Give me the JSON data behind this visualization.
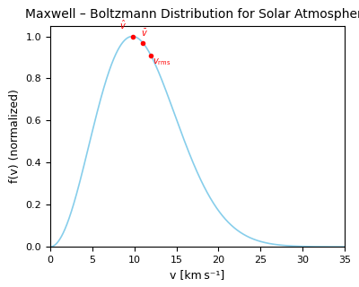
{
  "title": "Maxwell – Boltzmann Distribution for Solar Atmosphere",
  "xlabel": "v [km s⁻¹]",
  "ylabel": "f(v) (normalized)",
  "xlim": [
    0,
    35
  ],
  "ylim": [
    0,
    1.05
  ],
  "yticks": [
    0.0,
    0.2,
    0.4,
    0.6,
    0.8,
    1.0
  ],
  "xticks": [
    0,
    5,
    10,
    15,
    20,
    25,
    30,
    35
  ],
  "curve_color": "#87CEEB",
  "marker_color": "red",
  "T_K": 5778,
  "m_kg": 1.6726e-27,
  "k_B": 1.38064852e-23,
  "v_max_plot": 35000,
  "n_points": 2000,
  "scale_factor": 1000,
  "label_v_p": "$\\hat{v}$",
  "label_v_mean": "$\\bar{v}$",
  "label_v_rms": "$v_{\\rm rms}$",
  "background_color": "#ffffff",
  "title_fontsize": 10,
  "axis_label_fontsize": 9,
  "tick_fontsize": 8,
  "curve_linewidth": 1.2
}
